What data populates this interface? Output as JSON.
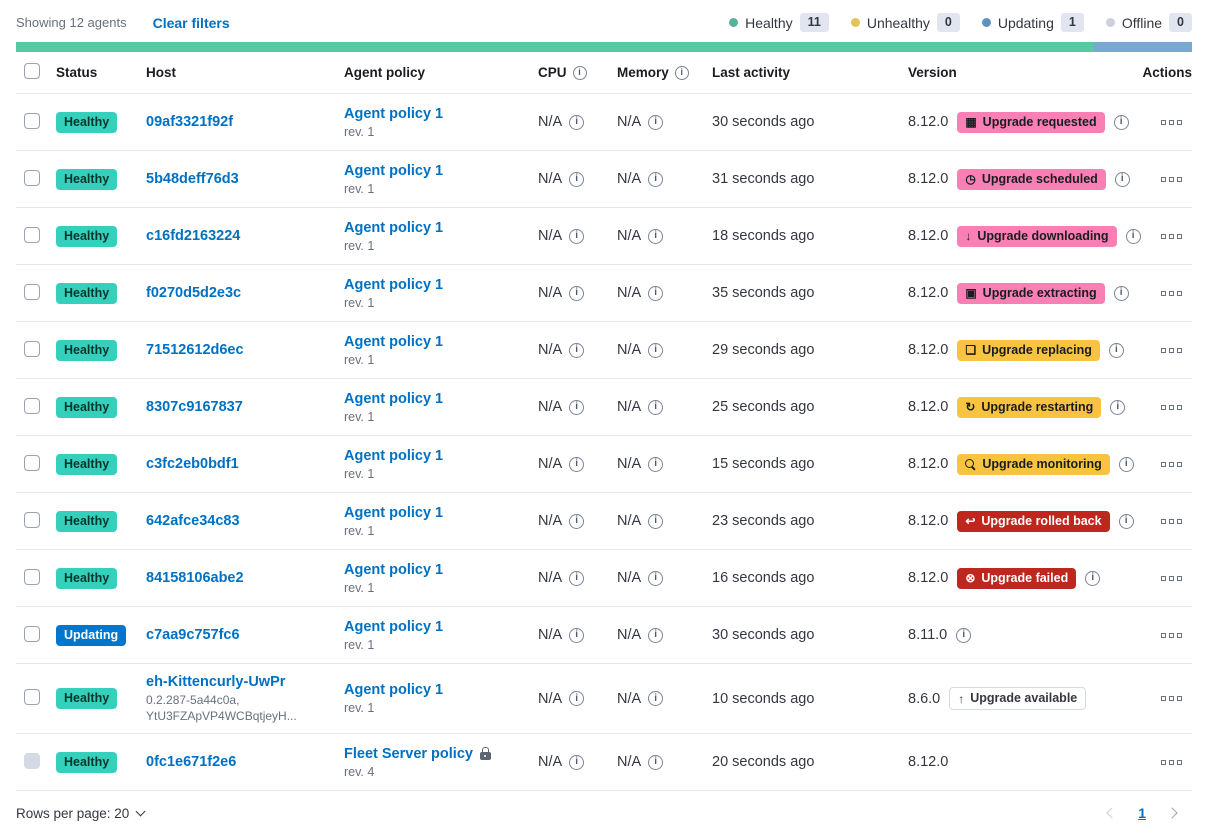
{
  "topbar": {
    "showing": "Showing 12 agents",
    "clear_filters": "Clear filters",
    "legend": [
      {
        "label": "Healthy",
        "count": "11",
        "color": "#54B399"
      },
      {
        "label": "Unhealthy",
        "count": "0",
        "color": "#E5C35B"
      },
      {
        "label": "Updating",
        "count": "1",
        "color": "#6092C0"
      },
      {
        "label": "Offline",
        "count": "0",
        "color": "#CBD2DE"
      }
    ]
  },
  "progress_bar": {
    "segments": [
      {
        "status": "healthy",
        "color": "#5BC8A4",
        "fraction": 0.9167
      },
      {
        "status": "updating",
        "color": "#79A8D6",
        "fraction": 0.0833
      }
    ]
  },
  "colors": {
    "link": "#0071C2",
    "healthy_badge": "#35D0BC",
    "updating_badge": "#0077CC",
    "upgrade_accent": "#F97FB4",
    "upgrade_warning": "#F8C440",
    "upgrade_danger": "#BD271E"
  },
  "table": {
    "columns": {
      "status": "Status",
      "host": "Host",
      "policy": "Agent policy",
      "cpu": "CPU",
      "memory": "Memory",
      "last_activity": "Last activity",
      "version": "Version",
      "actions": "Actions"
    },
    "rows": [
      {
        "status_label": "Healthy",
        "status_type": "healthy",
        "host": "09af3321f92f",
        "host_sub": [],
        "policy": "Agent policy 1",
        "policy_rev": "rev. 1",
        "policy_locked": false,
        "cpu": "N/A",
        "memory": "N/A",
        "last_activity": "30 seconds ago",
        "version": "8.12.0",
        "upgrade_badge": {
          "label": "Upgrade requested",
          "style": "accent",
          "icon": "calendar-icon"
        },
        "has_info_icon": true,
        "checkbox_disabled": false
      },
      {
        "status_label": "Healthy",
        "status_type": "healthy",
        "host": "5b48deff76d3",
        "host_sub": [],
        "policy": "Agent policy 1",
        "policy_rev": "rev. 1",
        "policy_locked": false,
        "cpu": "N/A",
        "memory": "N/A",
        "last_activity": "31 seconds ago",
        "version": "8.12.0",
        "upgrade_badge": {
          "label": "Upgrade scheduled",
          "style": "accent",
          "icon": "clock-icon"
        },
        "has_info_icon": true,
        "checkbox_disabled": false
      },
      {
        "status_label": "Healthy",
        "status_type": "healthy",
        "host": "c16fd2163224",
        "host_sub": [],
        "policy": "Agent policy 1",
        "policy_rev": "rev. 1",
        "policy_locked": false,
        "cpu": "N/A",
        "memory": "N/A",
        "last_activity": "18 seconds ago",
        "version": "8.12.0",
        "upgrade_badge": {
          "label": "Upgrade downloading",
          "style": "accent",
          "icon": "download-icon"
        },
        "has_info_icon": true,
        "checkbox_disabled": false
      },
      {
        "status_label": "Healthy",
        "status_type": "healthy",
        "host": "f0270d5d2e3c",
        "host_sub": [],
        "policy": "Agent policy 1",
        "policy_rev": "rev. 1",
        "policy_locked": false,
        "cpu": "N/A",
        "memory": "N/A",
        "last_activity": "35 seconds ago",
        "version": "8.12.0",
        "upgrade_badge": {
          "label": "Upgrade extracting",
          "style": "accent",
          "icon": "package-icon"
        },
        "has_info_icon": true,
        "checkbox_disabled": false
      },
      {
        "status_label": "Healthy",
        "status_type": "healthy",
        "host": "71512612d6ec",
        "host_sub": [],
        "policy": "Agent policy 1",
        "policy_rev": "rev. 1",
        "policy_locked": false,
        "cpu": "N/A",
        "memory": "N/A",
        "last_activity": "29 seconds ago",
        "version": "8.12.0",
        "upgrade_badge": {
          "label": "Upgrade replacing",
          "style": "warning",
          "icon": "document-icon"
        },
        "has_info_icon": true,
        "checkbox_disabled": false
      },
      {
        "status_label": "Healthy",
        "status_type": "healthy",
        "host": "8307c9167837",
        "host_sub": [],
        "policy": "Agent policy 1",
        "policy_rev": "rev. 1",
        "policy_locked": false,
        "cpu": "N/A",
        "memory": "N/A",
        "last_activity": "25 seconds ago",
        "version": "8.12.0",
        "upgrade_badge": {
          "label": "Upgrade restarting",
          "style": "warning",
          "icon": "refresh-icon"
        },
        "has_info_icon": true,
        "checkbox_disabled": false
      },
      {
        "status_label": "Healthy",
        "status_type": "healthy",
        "host": "c3fc2eb0bdf1",
        "host_sub": [],
        "policy": "Agent policy 1",
        "policy_rev": "rev. 1",
        "policy_locked": false,
        "cpu": "N/A",
        "memory": "N/A",
        "last_activity": "15 seconds ago",
        "version": "8.12.0",
        "upgrade_badge": {
          "label": "Upgrade monitoring",
          "style": "warning",
          "icon": "inspect-icon"
        },
        "has_info_icon": true,
        "checkbox_disabled": false
      },
      {
        "status_label": "Healthy",
        "status_type": "healthy",
        "host": "642afce34c83",
        "host_sub": [],
        "policy": "Agent policy 1",
        "policy_rev": "rev. 1",
        "policy_locked": false,
        "cpu": "N/A",
        "memory": "N/A",
        "last_activity": "23 seconds ago",
        "version": "8.12.0",
        "upgrade_badge": {
          "label": "Upgrade rolled back",
          "style": "danger",
          "icon": "undo-icon"
        },
        "has_info_icon": true,
        "checkbox_disabled": false
      },
      {
        "status_label": "Healthy",
        "status_type": "healthy",
        "host": "84158106abe2",
        "host_sub": [],
        "policy": "Agent policy 1",
        "policy_rev": "rev. 1",
        "policy_locked": false,
        "cpu": "N/A",
        "memory": "N/A",
        "last_activity": "16 seconds ago",
        "version": "8.12.0",
        "upgrade_badge": {
          "label": "Upgrade failed",
          "style": "danger",
          "icon": "error-icon"
        },
        "has_info_icon": true,
        "checkbox_disabled": false
      },
      {
        "status_label": "Updating",
        "status_type": "updating",
        "host": "c7aa9c757fc6",
        "host_sub": [],
        "policy": "Agent policy 1",
        "policy_rev": "rev. 1",
        "policy_locked": false,
        "cpu": "N/A",
        "memory": "N/A",
        "last_activity": "30 seconds ago",
        "version": "8.11.0",
        "upgrade_badge": null,
        "has_info_icon": true,
        "checkbox_disabled": false
      },
      {
        "status_label": "Healthy",
        "status_type": "healthy",
        "host": "eh-Kittencurly-UwPr",
        "host_sub": [
          "0.2.287-5a44c0a,",
          "YtU3FZApVP4WCBqtjeyH..."
        ],
        "policy": "Agent policy 1",
        "policy_rev": "rev. 1",
        "policy_locked": false,
        "cpu": "N/A",
        "memory": "N/A",
        "last_activity": "10 seconds ago",
        "version": "8.6.0",
        "upgrade_badge": {
          "label": "Upgrade available",
          "style": "hollow",
          "icon": "up-arrow-icon"
        },
        "has_info_icon": false,
        "checkbox_disabled": false
      },
      {
        "status_label": "Healthy",
        "status_type": "healthy",
        "host": "0fc1e671f2e6",
        "host_sub": [],
        "policy": "Fleet Server policy",
        "policy_rev": "rev. 4",
        "policy_locked": true,
        "cpu": "N/A",
        "memory": "N/A",
        "last_activity": "20 seconds ago",
        "version": "8.12.0",
        "upgrade_badge": null,
        "has_info_icon": false,
        "checkbox_disabled": true
      }
    ]
  },
  "footer": {
    "rows_per_page_label": "Rows per page: 20",
    "page": "1"
  }
}
